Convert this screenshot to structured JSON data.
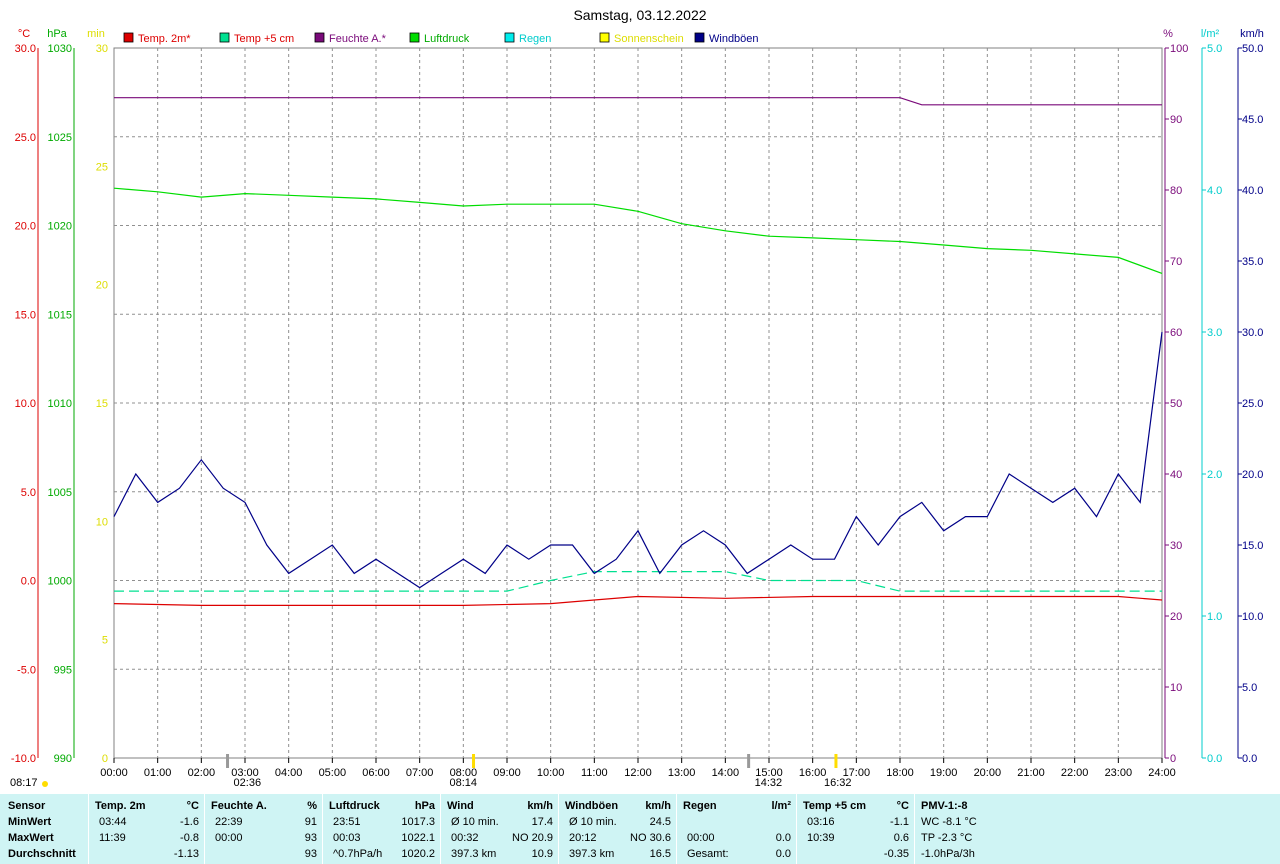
{
  "title": "Samstag, 03.12.2022",
  "axes": {
    "temp": {
      "unit": "°C",
      "ticks": [
        "30.0",
        "25.0",
        "20.0",
        "15.0",
        "10.0",
        "5.0",
        "0.0",
        "-5.0",
        "-10.0"
      ]
    },
    "pressure": {
      "unit": "hPa",
      "ticks": [
        "1030",
        "1025",
        "1020",
        "1015",
        "1010",
        "1005",
        "1000",
        "995",
        "990"
      ]
    },
    "minutes": {
      "unit": "min",
      "ticks": [
        "30",
        "25",
        "20",
        "15",
        "10",
        "5",
        "0"
      ]
    },
    "humidity": {
      "unit": "%",
      "ticks": [
        "100",
        "90",
        "80",
        "70",
        "60",
        "50",
        "40",
        "30",
        "20",
        "10",
        "0"
      ]
    },
    "rain": {
      "unit": "l/m²",
      "ticks": [
        "5.0",
        "4.0",
        "3.0",
        "2.0",
        "1.0",
        "0.0"
      ]
    },
    "wind": {
      "unit": "km/h",
      "ticks": [
        "50.0",
        "45.0",
        "40.0",
        "35.0",
        "30.0",
        "25.0",
        "20.0",
        "15.0",
        "10.0",
        "5.0",
        "0.0"
      ]
    }
  },
  "x_ticks": [
    "00:00",
    "01:00",
    "02:00",
    "03:00",
    "04:00",
    "05:00",
    "06:00",
    "07:00",
    "08:00",
    "09:00",
    "10:00",
    "11:00",
    "12:00",
    "13:00",
    "14:00",
    "15:00",
    "16:00",
    "17:00",
    "18:00",
    "19:00",
    "20:00",
    "21:00",
    "22:00",
    "23:00",
    "24:00"
  ],
  "sun_marks": {
    "sunrise": "08:17",
    "sunrise_axis": "08:14",
    "sunset": "16:32",
    "moonset": "02:36",
    "moonrise": "14:32"
  },
  "legend": [
    {
      "label": "Temp. 2m*",
      "color": "#dd0000",
      "text_color": "#dd0000"
    },
    {
      "label": "Temp +5 cm",
      "color": "#00e090",
      "text_color": "#dd0000"
    },
    {
      "label": "Feuchte A.*",
      "color": "#7a0a7a",
      "text_color": "#7a0a7a"
    },
    {
      "label": "Luftdruck",
      "color": "#00dd00",
      "text_color": "#00aa00"
    },
    {
      "label": "Regen",
      "color": "#00eeee",
      "text_color": "#00cccc"
    },
    {
      "label": "Sonnenschein",
      "color": "#ffff00",
      "text_color": "#dddd00"
    },
    {
      "label": "Windböen",
      "color": "#000088",
      "text_color": "#000088"
    }
  ],
  "chart_data": {
    "type": "line",
    "x_range": [
      "00:00",
      "24:00"
    ],
    "grid": true,
    "legend_placement": "top",
    "series": [
      {
        "name": "Temp. 2m*",
        "axis": "temp",
        "color": "#dd0000",
        "x": [
          0,
          2,
          4,
          6,
          8,
          10,
          11,
          12,
          14,
          16,
          17,
          18,
          20,
          22,
          23,
          24
        ],
        "values": [
          -1.3,
          -1.4,
          -1.4,
          -1.4,
          -1.4,
          -1.3,
          -1.1,
          -0.9,
          -1.0,
          -0.9,
          -0.9,
          -0.9,
          -0.9,
          -0.9,
          -0.9,
          -1.1
        ]
      },
      {
        "name": "Temp +5 cm",
        "axis": "temp",
        "color": "#00e090",
        "x": [
          0,
          3,
          5,
          6,
          7,
          9,
          10,
          11,
          12,
          13,
          14,
          15,
          16,
          17,
          18,
          20,
          22,
          23,
          24
        ],
        "values": [
          -0.6,
          -0.6,
          -0.6,
          -0.6,
          -0.6,
          -0.6,
          0.0,
          0.5,
          0.5,
          0.5,
          0.5,
          0.0,
          0.0,
          0.0,
          -0.6,
          -0.6,
          -0.6,
          -0.6,
          -0.6
        ]
      },
      {
        "name": "Feuchte A.*",
        "axis": "humidity",
        "color": "#7a0a7a",
        "x": [
          0,
          18,
          18.5,
          24
        ],
        "values": [
          93,
          93,
          92,
          92
        ]
      },
      {
        "name": "Luftdruck",
        "axis": "pressure",
        "color": "#00dd00",
        "x": [
          0,
          1,
          2,
          3,
          4,
          5,
          6,
          7,
          8,
          9,
          10,
          11,
          12,
          13,
          14,
          15,
          16,
          17,
          18,
          19,
          20,
          21,
          22,
          23,
          24
        ],
        "values": [
          1022.1,
          1021.9,
          1021.6,
          1021.8,
          1021.7,
          1021.6,
          1021.5,
          1021.3,
          1021.1,
          1021.2,
          1021.2,
          1021.2,
          1020.8,
          1020.1,
          1019.7,
          1019.4,
          1019.3,
          1019.2,
          1019.1,
          1018.9,
          1018.7,
          1018.6,
          1018.4,
          1018.2,
          1017.3
        ]
      },
      {
        "name": "Windböen",
        "axis": "wind",
        "color": "#000088",
        "x": [
          0,
          0.5,
          1,
          1.5,
          2,
          2.5,
          3,
          3.5,
          4,
          4.5,
          5,
          5.5,
          6,
          6.5,
          7,
          7.5,
          8,
          8.5,
          9,
          9.5,
          10,
          10.5,
          11,
          11.5,
          12,
          12.5,
          13,
          13.5,
          14,
          14.5,
          15,
          15.5,
          16,
          16.5,
          17,
          17.5,
          18,
          18.5,
          19,
          19.5,
          20,
          20.5,
          21,
          21.5,
          22,
          22.5,
          23,
          23.5,
          24
        ],
        "values": [
          17,
          20,
          18,
          19,
          21,
          19,
          18,
          15,
          13,
          14,
          15,
          13,
          14,
          13,
          12,
          13,
          14,
          13,
          15,
          14,
          15,
          15,
          13,
          14,
          16,
          13,
          15,
          16,
          15,
          13,
          14,
          15,
          14,
          14,
          17,
          15,
          17,
          18,
          16,
          17,
          17,
          20,
          19,
          18,
          19,
          17,
          20,
          18,
          30
        ]
      }
    ]
  },
  "stats": {
    "sensor": {
      "header": "Sensor",
      "rows": [
        "MinWert",
        "MaxWert",
        "Durchschnitt"
      ]
    },
    "temp2m": {
      "header": "Temp. 2m",
      "unit": "°C",
      "rows": [
        [
          "03:44",
          "-1.6"
        ],
        [
          "11:39",
          "-0.8"
        ],
        [
          "",
          "-1.13"
        ]
      ]
    },
    "feuchte": {
      "header": "Feuchte A.",
      "unit": "%",
      "rows": [
        [
          "22:39",
          "91"
        ],
        [
          "00:00",
          "93"
        ],
        [
          "",
          "93"
        ]
      ]
    },
    "luftdruck": {
      "header": "Luftdruck",
      "unit": "hPa",
      "rows": [
        [
          "23:51",
          "1017.3"
        ],
        [
          "00:03",
          "1022.1"
        ],
        [
          "^0.7hPa/h",
          "1020.2"
        ]
      ]
    },
    "wind": {
      "header": "Wind",
      "unit": "km/h",
      "rows": [
        [
          "Ø 10 min.",
          "17.4"
        ],
        [
          "00:32",
          "NO 20.9"
        ],
        [
          "397.3 km",
          "10.9"
        ]
      ]
    },
    "windboeen": {
      "header": "Windböen",
      "unit": "km/h",
      "rows": [
        [
          "Ø 10 min.",
          "24.5"
        ],
        [
          "20:12",
          "NO 30.6"
        ],
        [
          "397.3 km",
          "16.5"
        ]
      ]
    },
    "regen": {
      "header": "Regen",
      "unit": "l/m²",
      "rows": [
        [
          "",
          ""
        ],
        [
          "00:00",
          "0.0"
        ],
        [
          "Gesamt:",
          "0.0"
        ]
      ]
    },
    "temp5cm": {
      "header": "Temp +5 cm",
      "unit": "°C",
      "rows": [
        [
          "03:16",
          "-1.1"
        ],
        [
          "10:39",
          "0.6"
        ],
        [
          "",
          "-0.35"
        ]
      ]
    },
    "pmv": {
      "header": "PMV-1:-8",
      "rows": [
        "WC -8.1 °C",
        "TP -2.3 °C",
        "-1.0hPa/3h"
      ]
    }
  }
}
